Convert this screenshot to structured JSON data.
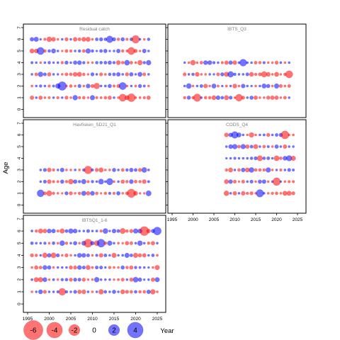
{
  "chart_data": {
    "type": "scatter",
    "description_kind": "bubble residual plot",
    "ylabel": "Age",
    "xlabel": "Year",
    "x_ticks": [
      1995,
      2000,
      2005,
      2010,
      2015,
      2020,
      2025
    ],
    "y_ticks": [
      0,
      1,
      2,
      3,
      4,
      5,
      6,
      7
    ],
    "colors": {
      "negative": "#ff0000",
      "positive": "#0000ff",
      "fill_opacity": 0.55
    },
    "panels": [
      {
        "title": "Residual catch",
        "years": [
          1996,
          2023
        ],
        "ages": [
          1,
          2,
          3,
          4,
          5,
          6
        ],
        "seed": 11,
        "highlights": [
          {
            "year": 2003,
            "age": 2,
            "value": 4.2
          },
          {
            "year": 2017,
            "age": 2,
            "value": 3.0
          },
          {
            "year": 2019,
            "age": 1,
            "value": -3.6
          },
          {
            "year": 2017,
            "age": 1,
            "value": -3.0
          },
          {
            "year": 2020,
            "age": 6,
            "value": -3.4
          },
          {
            "year": 2014,
            "age": 6,
            "value": 2.6
          },
          {
            "year": 2019,
            "age": 5,
            "value": -3.0
          },
          {
            "year": 1998,
            "age": 5,
            "value": 3.0
          }
        ]
      },
      {
        "title": "IBTS_Q3",
        "years": [
          1998,
          2023
        ],
        "ages": [
          1,
          2,
          3,
          4
        ],
        "seed": 23,
        "highlights": [
          {
            "year": 2001,
            "age": 1,
            "value": -3.2
          },
          {
            "year": 2011,
            "age": 1,
            "value": -2.8
          },
          {
            "year": 2023,
            "age": 3,
            "value": -3.0
          },
          {
            "year": 2012,
            "age": 4,
            "value": 2.8
          }
        ]
      },
      {
        "title": "Havfisken_SD21_Q1",
        "years": [
          1998,
          2023
        ],
        "ages": [
          1,
          2,
          3
        ],
        "seed": 37,
        "highlights": [
          {
            "year": 2019,
            "age": 1,
            "value": -4.0
          },
          {
            "year": 2009,
            "age": 3,
            "value": -3.4
          },
          {
            "year": 2014,
            "age": 2,
            "value": 2.4
          },
          {
            "year": 1998,
            "age": 1,
            "value": 2.8
          }
        ]
      },
      {
        "title": "CODS_Q4",
        "years": [
          2008,
          2024
        ],
        "ages": [
          1,
          2,
          3,
          4,
          5,
          6
        ],
        "seed": 53,
        "highlights": [
          {
            "year": 2020,
            "age": 2,
            "value": -3.4
          },
          {
            "year": 2022,
            "age": 6,
            "value": -3.6
          },
          {
            "year": 2016,
            "age": 1,
            "value": 3.2
          },
          {
            "year": 2010,
            "age": 6,
            "value": 2.6
          }
        ]
      },
      {
        "title": "IBTSQ1_1-6",
        "years": [
          1996,
          2025
        ],
        "ages": [
          1,
          2,
          3,
          4,
          5,
          6
        ],
        "seed": 71,
        "highlights": [
          {
            "year": 2022,
            "age": 6,
            "value": -4.6
          },
          {
            "year": 2025,
            "age": 6,
            "value": 3.6
          },
          {
            "year": 2009,
            "age": 5,
            "value": -3.8
          },
          {
            "year": 2012,
            "age": 5,
            "value": 3.6
          },
          {
            "year": 2003,
            "age": 1,
            "value": -2.8
          }
        ]
      }
    ],
    "legend": {
      "values": [
        -6,
        -4,
        -2,
        0,
        2,
        4
      ],
      "labels": [
        "-6",
        "-4",
        "-2",
        "0",
        "2",
        "4"
      ],
      "position": "bottom-left"
    }
  }
}
